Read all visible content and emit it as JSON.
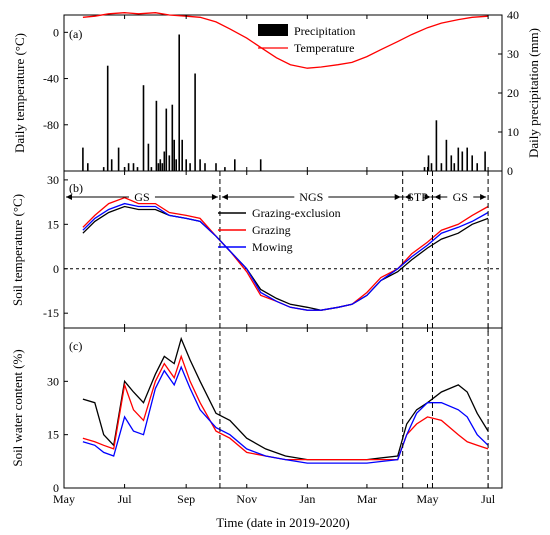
{
  "figure": {
    "xlabel": "Time (date in 2019-2020)",
    "x_tick_labels": [
      "May",
      "Jul",
      "Sep",
      "Nov",
      "Jan",
      "Mar",
      "May",
      "Jul"
    ],
    "x_tick_dates": [
      "2019-05-01",
      "2019-07-01",
      "2019-09-01",
      "2019-11-01",
      "2020-01-01",
      "2020-03-01",
      "2020-05-01",
      "2020-07-01"
    ],
    "x_range": [
      "2019-05-01",
      "2020-07-15"
    ],
    "period_boundaries": [
      "2019-10-05",
      "2020-04-06",
      "2020-05-06",
      "2020-07-01"
    ]
  },
  "chart_data": [
    {
      "panel": "(a)",
      "type": "bar+line",
      "ylabel": "Daily temperature (°C)",
      "y2label": "Daily precipitation (mm)",
      "ylim": [
        -120,
        15
      ],
      "y2lim": [
        0,
        40
      ],
      "y_ticks": [
        0,
        -40,
        -80
      ],
      "y2_ticks": [
        0,
        10,
        20,
        30,
        40
      ],
      "legend_position": "top-center",
      "legend": [
        "Precipitation",
        "Temperature"
      ],
      "colors": {
        "Precipitation": "#000000",
        "Temperature": "#ff0000"
      },
      "temperature_series": {
        "name": "Temperature",
        "dates": [
          "2019-05-20",
          "2019-06-01",
          "2019-06-15",
          "2019-07-01",
          "2019-07-15",
          "2019-08-01",
          "2019-08-15",
          "2019-09-01",
          "2019-09-15",
          "2019-10-01",
          "2019-10-15",
          "2019-11-01",
          "2019-11-15",
          "2019-12-01",
          "2019-12-15",
          "2020-01-01",
          "2020-01-15",
          "2020-02-01",
          "2020-02-15",
          "2020-03-01",
          "2020-03-15",
          "2020-04-01",
          "2020-04-15",
          "2020-05-01",
          "2020-05-15",
          "2020-06-01",
          "2020-06-15",
          "2020-07-01"
        ],
        "values": [
          13,
          14,
          16,
          17,
          16,
          17,
          15,
          14,
          13,
          9,
          3,
          -5,
          -13,
          -22,
          -28,
          -31,
          -30,
          -28,
          -26,
          -21,
          -15,
          -8,
          -2,
          4,
          8,
          11,
          13,
          14
        ]
      },
      "precipitation_series": {
        "name": "Precipitation",
        "dates": [
          "2019-05-20",
          "2019-05-25",
          "2019-06-10",
          "2019-06-14",
          "2019-06-18",
          "2019-06-25",
          "2019-07-01",
          "2019-07-05",
          "2019-07-10",
          "2019-07-14",
          "2019-07-20",
          "2019-07-25",
          "2019-07-28",
          "2019-08-02",
          "2019-08-04",
          "2019-08-06",
          "2019-08-08",
          "2019-08-10",
          "2019-08-12",
          "2019-08-15",
          "2019-08-18",
          "2019-08-20",
          "2019-08-22",
          "2019-08-25",
          "2019-08-28",
          "2019-09-01",
          "2019-09-05",
          "2019-09-10",
          "2019-09-15",
          "2019-09-20",
          "2019-10-01",
          "2019-10-10",
          "2019-10-20",
          "2019-11-15",
          "2020-04-28",
          "2020-05-02",
          "2020-05-05",
          "2020-05-10",
          "2020-05-15",
          "2020-05-20",
          "2020-05-25",
          "2020-05-28",
          "2020-06-01",
          "2020-06-05",
          "2020-06-10",
          "2020-06-15",
          "2020-06-20",
          "2020-06-28"
        ],
        "values": [
          6,
          2,
          1,
          27,
          3,
          6,
          1,
          2,
          2,
          1,
          22,
          7,
          1,
          18,
          2,
          3,
          2,
          5,
          16,
          4,
          17,
          8,
          3,
          35,
          8,
          3,
          2,
          25,
          3,
          2,
          2,
          1,
          3,
          3,
          1,
          4,
          2,
          13,
          2,
          8,
          4,
          2,
          6,
          5,
          6,
          4,
          2,
          5
        ]
      }
    },
    {
      "panel": "(b)",
      "type": "line",
      "ylabel": "Soil temperature (°C)",
      "ylim": [
        -20,
        33
      ],
      "y_ticks": [
        30,
        15,
        0,
        -15
      ],
      "reference_line": 0,
      "period_labels": [
        "GS",
        "NGS",
        "STP",
        "GS"
      ],
      "legend_position": "middle-center",
      "series": [
        {
          "name": "Grazing-exclusion",
          "color": "#000000",
          "dates": [
            "2019-05-20",
            "2019-06-01",
            "2019-06-15",
            "2019-07-01",
            "2019-07-15",
            "2019-08-01",
            "2019-08-15",
            "2019-09-01",
            "2019-09-15",
            "2019-10-01",
            "2019-10-15",
            "2019-11-01",
            "2019-11-15",
            "2019-12-01",
            "2019-12-15",
            "2020-01-01",
            "2020-01-15",
            "2020-02-01",
            "2020-02-15",
            "2020-03-01",
            "2020-03-15",
            "2020-04-01",
            "2020-04-15",
            "2020-05-01",
            "2020-05-15",
            "2020-06-01",
            "2020-06-15",
            "2020-07-01"
          ],
          "values": [
            12,
            16,
            19,
            21,
            20,
            20,
            18,
            17,
            16,
            11,
            6,
            0,
            -7,
            -10,
            -12,
            -13,
            -14,
            -13,
            -12,
            -9,
            -4,
            -1,
            3,
            7,
            10,
            12,
            15,
            17
          ]
        },
        {
          "name": "Grazing",
          "color": "#ff0000",
          "dates": [
            "2019-05-20",
            "2019-06-01",
            "2019-06-15",
            "2019-07-01",
            "2019-07-15",
            "2019-08-01",
            "2019-08-15",
            "2019-09-01",
            "2019-09-15",
            "2019-10-01",
            "2019-10-15",
            "2019-11-01",
            "2019-11-15",
            "2019-12-01",
            "2019-12-15",
            "2020-01-01",
            "2020-01-15",
            "2020-02-01",
            "2020-02-15",
            "2020-03-01",
            "2020-03-15",
            "2020-04-01",
            "2020-04-15",
            "2020-05-01",
            "2020-05-15",
            "2020-06-01",
            "2020-06-15",
            "2020-07-01"
          ],
          "values": [
            14,
            18,
            22,
            24,
            22,
            22,
            19,
            18,
            17,
            11,
            6,
            -1,
            -9,
            -11,
            -13,
            -14,
            -14,
            -13,
            -12,
            -8,
            -3,
            0,
            5,
            9,
            13,
            15,
            18,
            21
          ]
        },
        {
          "name": "Mowing",
          "color": "#0000ff",
          "dates": [
            "2019-05-20",
            "2019-06-01",
            "2019-06-15",
            "2019-07-01",
            "2019-07-15",
            "2019-08-01",
            "2019-08-15",
            "2019-09-01",
            "2019-09-15",
            "2019-10-01",
            "2019-10-15",
            "2019-11-01",
            "2019-11-15",
            "2019-12-01",
            "2019-12-15",
            "2020-01-01",
            "2020-01-15",
            "2020-02-01",
            "2020-02-15",
            "2020-03-01",
            "2020-03-15",
            "2020-04-01",
            "2020-04-15",
            "2020-05-01",
            "2020-05-15",
            "2020-06-01",
            "2020-06-15",
            "2020-07-01"
          ],
          "values": [
            13,
            17,
            20,
            22,
            21,
            21,
            18,
            17,
            16,
            11,
            6,
            0,
            -8,
            -11,
            -13,
            -14,
            -14,
            -13,
            -12,
            -9,
            -4,
            0,
            4,
            8,
            12,
            14,
            16,
            19
          ]
        }
      ]
    },
    {
      "panel": "(c)",
      "type": "line",
      "ylabel": "Soil water content (%)",
      "ylim": [
        0,
        45
      ],
      "y_ticks": [
        0,
        15,
        30
      ],
      "series": [
        {
          "name": "Grazing-exclusion",
          "color": "#000000",
          "dates": [
            "2019-05-20",
            "2019-06-01",
            "2019-06-10",
            "2019-06-20",
            "2019-07-01",
            "2019-07-10",
            "2019-07-20",
            "2019-08-01",
            "2019-08-10",
            "2019-08-20",
            "2019-08-27",
            "2019-09-05",
            "2019-09-15",
            "2019-10-01",
            "2019-10-15",
            "2019-11-01",
            "2019-11-20",
            "2019-12-10",
            "2020-01-01",
            "2020-02-01",
            "2020-03-01",
            "2020-04-01",
            "2020-04-10",
            "2020-04-20",
            "2020-05-01",
            "2020-05-15",
            "2020-06-01",
            "2020-06-10",
            "2020-06-20",
            "2020-07-01"
          ],
          "values": [
            25,
            24,
            15,
            12,
            30,
            27,
            24,
            32,
            37,
            35,
            42,
            36,
            30,
            21,
            19,
            14,
            11,
            9,
            8,
            8,
            8,
            9,
            18,
            22,
            24,
            27,
            29,
            27,
            21,
            16
          ]
        },
        {
          "name": "Grazing",
          "color": "#ff0000",
          "dates": [
            "2019-05-20",
            "2019-06-01",
            "2019-06-10",
            "2019-06-20",
            "2019-07-01",
            "2019-07-10",
            "2019-07-20",
            "2019-08-01",
            "2019-08-10",
            "2019-08-20",
            "2019-08-27",
            "2019-09-05",
            "2019-09-15",
            "2019-10-01",
            "2019-10-15",
            "2019-11-01",
            "2019-11-20",
            "2019-12-10",
            "2020-01-01",
            "2020-02-01",
            "2020-03-01",
            "2020-04-01",
            "2020-04-10",
            "2020-04-20",
            "2020-05-01",
            "2020-05-15",
            "2020-06-01",
            "2020-06-10",
            "2020-06-20",
            "2020-07-01"
          ],
          "values": [
            14,
            13,
            12,
            11,
            29,
            22,
            19,
            30,
            35,
            31,
            37,
            30,
            24,
            16,
            14,
            10,
            9,
            8,
            8,
            8,
            8,
            8,
            15,
            18,
            20,
            19,
            15,
            13,
            12,
            11
          ]
        },
        {
          "name": "Mowing",
          "color": "#0000ff",
          "dates": [
            "2019-05-20",
            "2019-06-01",
            "2019-06-10",
            "2019-06-20",
            "2019-07-01",
            "2019-07-10",
            "2019-07-20",
            "2019-08-01",
            "2019-08-10",
            "2019-08-20",
            "2019-08-27",
            "2019-09-05",
            "2019-09-15",
            "2019-10-01",
            "2019-10-15",
            "2019-11-01",
            "2019-11-20",
            "2019-12-10",
            "2020-01-01",
            "2020-02-01",
            "2020-03-01",
            "2020-04-01",
            "2020-04-10",
            "2020-04-20",
            "2020-05-01",
            "2020-05-15",
            "2020-06-01",
            "2020-06-10",
            "2020-06-20",
            "2020-07-01"
          ],
          "values": [
            13,
            12,
            10,
            9,
            20,
            16,
            15,
            28,
            33,
            29,
            34,
            28,
            22,
            17,
            15,
            11,
            9,
            8,
            7,
            7,
            7,
            8,
            15,
            21,
            24,
            24,
            22,
            20,
            15,
            12
          ]
        }
      ]
    }
  ]
}
